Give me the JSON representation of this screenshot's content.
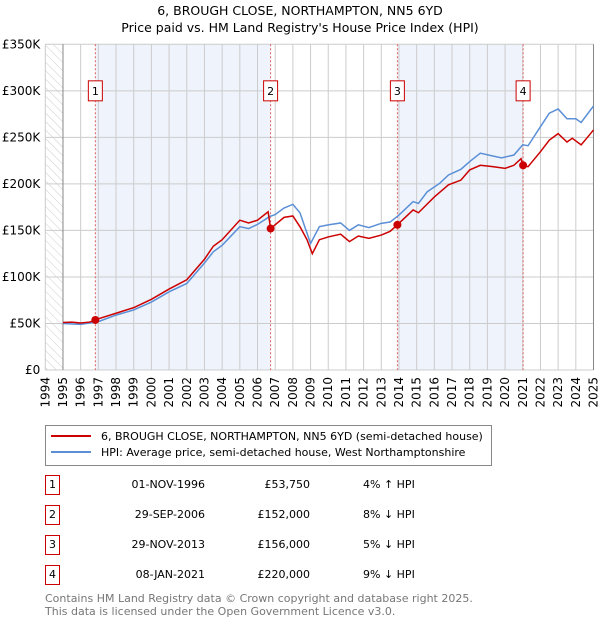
{
  "chart_data": {
    "type": "line",
    "title": "6, BROUGH CLOSE, NORTHAMPTON, NN5 6YD",
    "subtitle": "Price paid vs. HM Land Registry's House Price Index (HPI)",
    "xlabel": "",
    "ylabel": "",
    "xlim": [
      1994,
      2025
    ],
    "ylim": [
      0,
      350000
    ],
    "x_ticks": [
      "1994",
      "1995",
      "1996",
      "1997",
      "1998",
      "1999",
      "2000",
      "2001",
      "2002",
      "2003",
      "2004",
      "2005",
      "2006",
      "2007",
      "2008",
      "2009",
      "2010",
      "2011",
      "2012",
      "2013",
      "2014",
      "2015",
      "2016",
      "2017",
      "2018",
      "2019",
      "2020",
      "2021",
      "2022",
      "2023",
      "2024",
      "2025"
    ],
    "y_ticks": [
      {
        "v": 0,
        "label": "£0"
      },
      {
        "v": 50000,
        "label": "£50K"
      },
      {
        "v": 100000,
        "label": "£100K"
      },
      {
        "v": 150000,
        "label": "£150K"
      },
      {
        "v": 200000,
        "label": "£200K"
      },
      {
        "v": 250000,
        "label": "£250K"
      },
      {
        "v": 300000,
        "label": "£300K"
      },
      {
        "v": 350000,
        "label": "£350K"
      }
    ],
    "grid": true,
    "series": [
      {
        "name": "6, BROUGH CLOSE, NORTHAMPTON, NN5 6YD (semi-detached house)",
        "color": "#cc0000",
        "x": [
          1995,
          1995.5,
          1996,
          1996.5,
          1996.83,
          1997,
          1998,
          1999,
          2000,
          2001,
          2002,
          2003,
          2003.5,
          2004,
          2005,
          2005.5,
          2006,
          2006.6,
          2006.74,
          2007.5,
          2008,
          2008.4,
          2008.8,
          2009.1,
          2009.5,
          2010,
          2010.7,
          2011.2,
          2011.7,
          2012.3,
          2013,
          2013.5,
          2013.91,
          2014.8,
          2015.1,
          2016,
          2016.8,
          2017.5,
          2018,
          2018.6,
          2019.3,
          2020,
          2020.5,
          2020.9,
          2021.02,
          2021.3,
          2022,
          2022.5,
          2023,
          2023.5,
          2023.8,
          2024.3,
          2024.7,
          2025
        ],
        "y": [
          51000,
          51500,
          50500,
          51500,
          53750,
          55000,
          61000,
          67000,
          76000,
          87000,
          97000,
          119000,
          133000,
          140000,
          161000,
          158000,
          161000,
          170000,
          152000,
          164000,
          165500,
          154000,
          140000,
          125000,
          140000,
          143000,
          146000,
          138000,
          144000,
          141500,
          145000,
          149000,
          156000,
          172000,
          169000,
          186000,
          199000,
          204000,
          215000,
          220000,
          218500,
          216700,
          220000,
          227000,
          220000,
          218500,
          234600,
          247000,
          254000,
          245000,
          249000,
          242000,
          251000,
          258000
        ]
      },
      {
        "name": "HPI: Average price, semi-detached house, West Northamptonshire",
        "color": "#5b8fd6",
        "x": [
          1995,
          1996,
          1997,
          1998,
          1999,
          2000,
          2001,
          2002,
          2003,
          2003.5,
          2004,
          2005,
          2005.5,
          2006,
          2006.7,
          2007,
          2007.5,
          2008,
          2008.4,
          2009,
          2009.5,
          2010,
          2010.7,
          2011.2,
          2011.7,
          2012.3,
          2013,
          2013.5,
          2014,
          2014.8,
          2015.1,
          2015.6,
          2016.3,
          2016.8,
          2017.5,
          2018,
          2018.6,
          2019.3,
          2019.8,
          2020.5,
          2021,
          2021.3,
          2022,
          2022.5,
          2023,
          2023.5,
          2024,
          2024.3,
          2025
        ],
        "y": [
          50000,
          49000,
          52000,
          59000,
          64500,
          73000,
          84000,
          93000,
          115000,
          127000,
          134000,
          154000,
          152000,
          156500,
          165000,
          167000,
          174000,
          178000,
          169000,
          136000,
          154000,
          156000,
          158000,
          150000,
          156000,
          153000,
          157600,
          159000,
          166500,
          181000,
          179000,
          191600,
          200600,
          209600,
          215600,
          224000,
          233000,
          230000,
          228000,
          231000,
          242000,
          241000,
          261500,
          276000,
          280500,
          270000,
          270000,
          266000,
          283700
        ]
      }
    ],
    "sales": [
      {
        "label": "1",
        "x": 1996.83,
        "price": 53750
      },
      {
        "label": "2",
        "x": 2006.74,
        "price": 152000
      },
      {
        "label": "3",
        "x": 2013.91,
        "price": 156000
      },
      {
        "label": "4",
        "x": 2021.02,
        "price": 220000
      }
    ],
    "shaded_ranges": [
      [
        1996.83,
        2006.74
      ],
      [
        2013.91,
        2021.02
      ]
    ],
    "legend_position": "below"
  },
  "legend": {
    "property": "6, BROUGH CLOSE, NORTHAMPTON, NN5 6YD (semi-detached house)",
    "hpi": "HPI: Average price, semi-detached house, West Northamptonshire"
  },
  "transactions": [
    {
      "num": "1",
      "date": "01-NOV-1996",
      "price": "£53,750",
      "hpi": "4% ↑ HPI"
    },
    {
      "num": "2",
      "date": "29-SEP-2006",
      "price": "£152,000",
      "hpi": "8% ↓ HPI"
    },
    {
      "num": "3",
      "date": "29-NOV-2013",
      "price": "£156,000",
      "hpi": "5% ↓ HPI"
    },
    {
      "num": "4",
      "date": "08-JAN-2021",
      "price": "£220,000",
      "hpi": "9% ↓ HPI"
    }
  ],
  "footer": {
    "line1": "Contains HM Land Registry data © Crown copyright and database right 2025.",
    "line2": "This data is licensed under the Open Government Licence v3.0."
  }
}
